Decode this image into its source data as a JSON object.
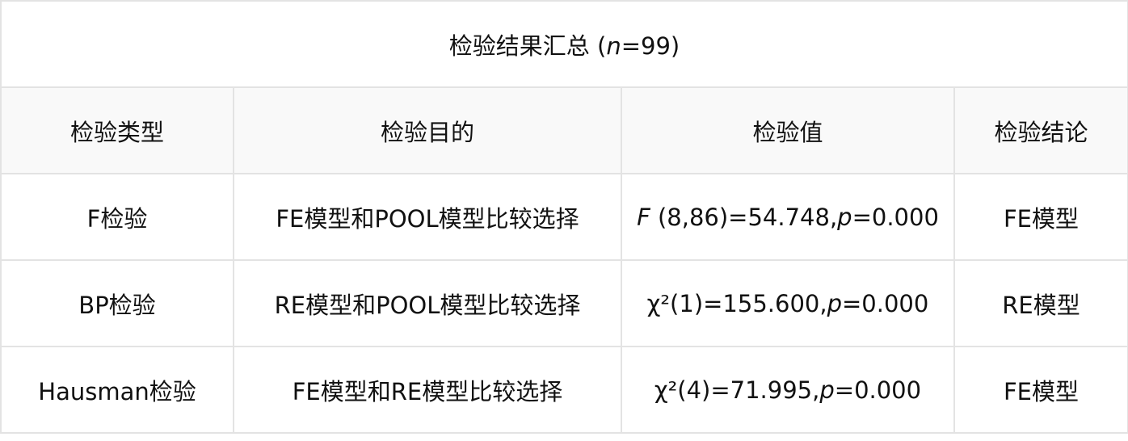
{
  "title": {
    "prefix": "检验结果汇总 (",
    "italic": "n",
    "suffix": "=99)"
  },
  "headers": [
    "检验类型",
    "检验目的",
    "检验值",
    "检验结论"
  ],
  "rows": [
    {
      "type": "F检验",
      "purpose": "FE模型和POOL模型比较选择",
      "value": {
        "stat_italic": "F",
        "stat": " (8,86)=54.748,",
        "p_italic": "p",
        "p": "=0.000"
      },
      "conclusion": "FE模型"
    },
    {
      "type": "BP检验",
      "purpose": "RE模型和POOL模型比较选择",
      "value": {
        "stat_italic": "",
        "stat": "χ²(1)=155.600,",
        "p_italic": "p",
        "p": "=0.000"
      },
      "conclusion": "RE模型"
    },
    {
      "type": "Hausman检验",
      "purpose": "FE模型和RE模型比较选择",
      "value": {
        "stat_italic": "",
        "stat": "χ²(4)=71.995,",
        "p_italic": "p",
        "p": "=0.000"
      },
      "conclusion": "FE模型"
    }
  ]
}
